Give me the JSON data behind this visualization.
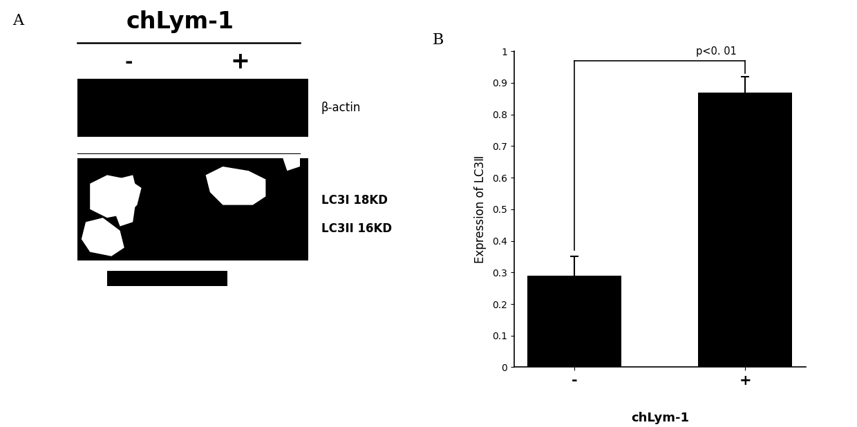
{
  "panel_A_label": "A",
  "panel_B_label": "B",
  "title_A": "chLym-1",
  "col_labels": [
    "-",
    "+"
  ],
  "band1_label": "β-actin",
  "band2_label1": "LC3I 18KD",
  "band2_label2": "LC3II 16KD",
  "bar_categories": [
    "-",
    "+"
  ],
  "bar_values": [
    0.29,
    0.87
  ],
  "bar_errors": [
    0.06,
    0.05
  ],
  "bar_color": "#000000",
  "ylabel": "Expression of LC3Ⅱ",
  "xlabel": "chLym-1",
  "ylim": [
    0,
    1.0
  ],
  "yticks": [
    0,
    0.1,
    0.2,
    0.3,
    0.4,
    0.5,
    0.6,
    0.7,
    0.8,
    0.9,
    1
  ],
  "significance_text": "p<0. 01",
  "background_color": "#ffffff"
}
